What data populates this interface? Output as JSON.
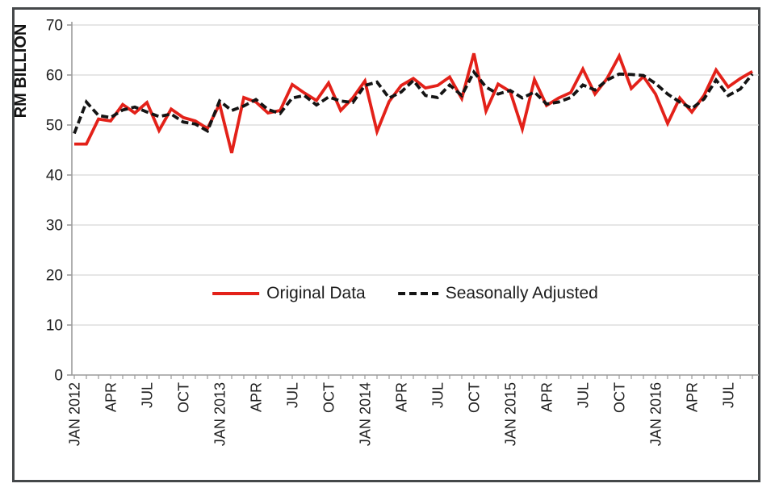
{
  "figure": {
    "background": "#ffffff",
    "border_color": "#45484a",
    "gridline_color": "#d7d7d7",
    "axis_color": "#9b9b9b",
    "text_color": "#1e1e1e"
  },
  "legend": {
    "items": [
      {
        "label": "Original Data",
        "color": "#e32119",
        "style": "solid"
      },
      {
        "label": "Seasonally Adjusted",
        "color": "#141414",
        "style": "dashed"
      }
    ]
  },
  "chart_data": {
    "type": "line",
    "title": "",
    "xlabel": "",
    "ylabel": "RM BILLION",
    "ylim": [
      0,
      70
    ],
    "y_ticks": [
      0,
      10,
      20,
      30,
      40,
      50,
      60,
      70
    ],
    "grid": "horizontal",
    "legend_position": "inside-center",
    "x_unit": "month",
    "x_start": "JAN 2012",
    "x_end": "SEP 2016",
    "x_point_count": 57,
    "x_tick_labels": [
      {
        "index": 0,
        "label": "JAN 2012"
      },
      {
        "index": 3,
        "label": "APR"
      },
      {
        "index": 6,
        "label": "JUL"
      },
      {
        "index": 9,
        "label": "OCT"
      },
      {
        "index": 12,
        "label": "JAN 2013"
      },
      {
        "index": 15,
        "label": "APR"
      },
      {
        "index": 18,
        "label": "JUL"
      },
      {
        "index": 21,
        "label": "OCT"
      },
      {
        "index": 24,
        "label": "JAN 2014"
      },
      {
        "index": 27,
        "label": "APR"
      },
      {
        "index": 30,
        "label": "JUL"
      },
      {
        "index": 33,
        "label": "OCT"
      },
      {
        "index": 36,
        "label": "JAN 2015"
      },
      {
        "index": 39,
        "label": "APR"
      },
      {
        "index": 42,
        "label": "JUL"
      },
      {
        "index": 45,
        "label": "OCT"
      },
      {
        "index": 48,
        "label": "JAN 2016"
      },
      {
        "index": 51,
        "label": "APR"
      },
      {
        "index": 54,
        "label": "JUL"
      }
    ],
    "series": [
      {
        "name": "Original Data",
        "color": "#e32119",
        "style": "solid",
        "values": [
          46.2,
          46.2,
          51.2,
          50.8,
          54.1,
          52.4,
          54.5,
          48.9,
          53.2,
          51.5,
          50.8,
          49.3,
          54.2,
          44.4,
          55.5,
          54.6,
          52.4,
          52.9,
          58.1,
          56.4,
          54.9,
          58.4,
          52.9,
          55.4,
          58.8,
          48.7,
          54.7,
          57.9,
          59.3,
          57.4,
          57.9,
          59.6,
          55.3,
          64.3,
          52.8,
          58.2,
          56.7,
          49.2,
          59.1,
          53.9,
          55.4,
          56.5,
          61.2,
          56.2,
          59.3,
          63.8,
          57.3,
          59.7,
          56.2,
          50.3,
          55.4,
          52.6,
          55.9,
          61.0,
          57.6,
          59.3,
          60.7
        ]
      },
      {
        "name": "Seasonally Adjusted",
        "color": "#141414",
        "style": "dashed",
        "values": [
          48.3,
          54.6,
          51.9,
          51.5,
          53.0,
          53.6,
          52.6,
          51.7,
          52.2,
          50.6,
          50.2,
          48.8,
          54.8,
          52.9,
          53.8,
          55.1,
          53.1,
          52.3,
          55.4,
          55.9,
          54.0,
          55.6,
          54.8,
          54.5,
          57.9,
          58.6,
          55.4,
          56.6,
          58.9,
          55.9,
          55.5,
          58.0,
          55.9,
          60.6,
          57.6,
          56.2,
          56.9,
          55.4,
          56.6,
          54.2,
          54.6,
          55.5,
          58.0,
          57.0,
          59.0,
          60.2,
          60.1,
          59.9,
          58.3,
          56.2,
          54.6,
          53.3,
          55.2,
          59.0,
          55.9,
          57.2,
          60.2
        ]
      }
    ]
  }
}
